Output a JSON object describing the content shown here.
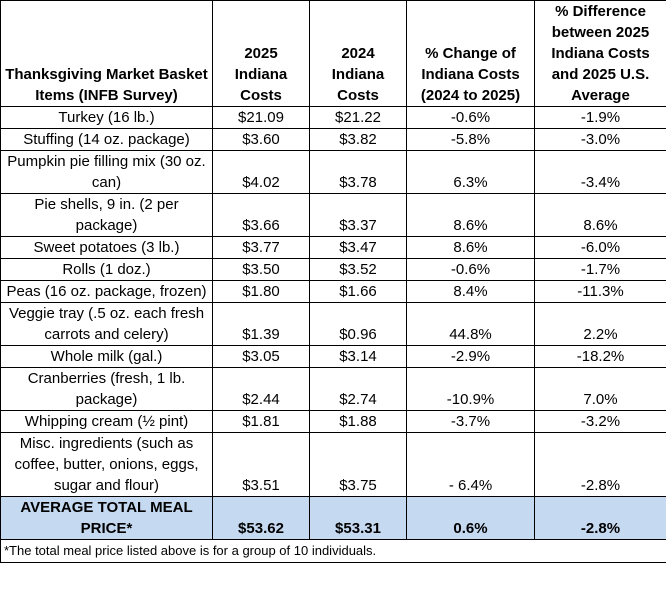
{
  "table": {
    "header": [
      "Thanksgiving Market Basket Items (INFB Survey)",
      "2025 Indiana Costs",
      "2024 Indiana Costs",
      "% Change of Indiana Costs (2024 to 2025)",
      "% Difference between 2025 Indiana Costs and 2025 U.S. Average"
    ],
    "rows": [
      [
        "Turkey (16 lb.)",
        "$21.09",
        "$21.22",
        "-0.6%",
        "-1.9%"
      ],
      [
        "Stuffing (14 oz. package)",
        "$3.60",
        "$3.82",
        "-5.8%",
        "-3.0%"
      ],
      [
        "Pumpkin pie filling mix (30 oz. can)",
        "$4.02",
        "$3.78",
        "6.3%",
        "-3.4%"
      ],
      [
        "Pie shells, 9 in. (2 per package)",
        "$3.66",
        "$3.37",
        "8.6%",
        "8.6%"
      ],
      [
        "Sweet potatoes (3 lb.)",
        "$3.77",
        "$3.47",
        "8.6%",
        "-6.0%"
      ],
      [
        "Rolls (1 doz.)",
        "$3.50",
        "$3.52",
        "-0.6%",
        "-1.7%"
      ],
      [
        "Peas (16 oz. package, frozen)",
        "$1.80",
        "$1.66",
        "8.4%",
        "-11.3%"
      ],
      [
        "Veggie tray (.5 oz. each fresh carrots and celery)",
        "$1.39",
        "$0.96",
        "44.8%",
        "2.2%"
      ],
      [
        "Whole milk (gal.)",
        "$3.05",
        "$3.14",
        "-2.9%",
        "-18.2%"
      ],
      [
        "Cranberries (fresh, 1 lb. package)",
        "$2.44",
        "$2.74",
        "-10.9%",
        "7.0%"
      ],
      [
        "Whipping cream (½ pint)",
        "$1.81",
        "$1.88",
        "-3.7%",
        "-3.2%"
      ],
      [
        "Misc. ingredients (such as coffee, butter, onions, eggs, sugar and flour)",
        "$3.51",
        "$3.75",
        "- 6.4%",
        "-2.8%"
      ]
    ],
    "total": [
      "AVERAGE TOTAL MEAL PRICE*",
      "$53.62",
      "$53.31",
      "0.6%",
      "-2.8%"
    ],
    "footnote": "*The total meal price listed above is for a group of 10 individuals."
  }
}
